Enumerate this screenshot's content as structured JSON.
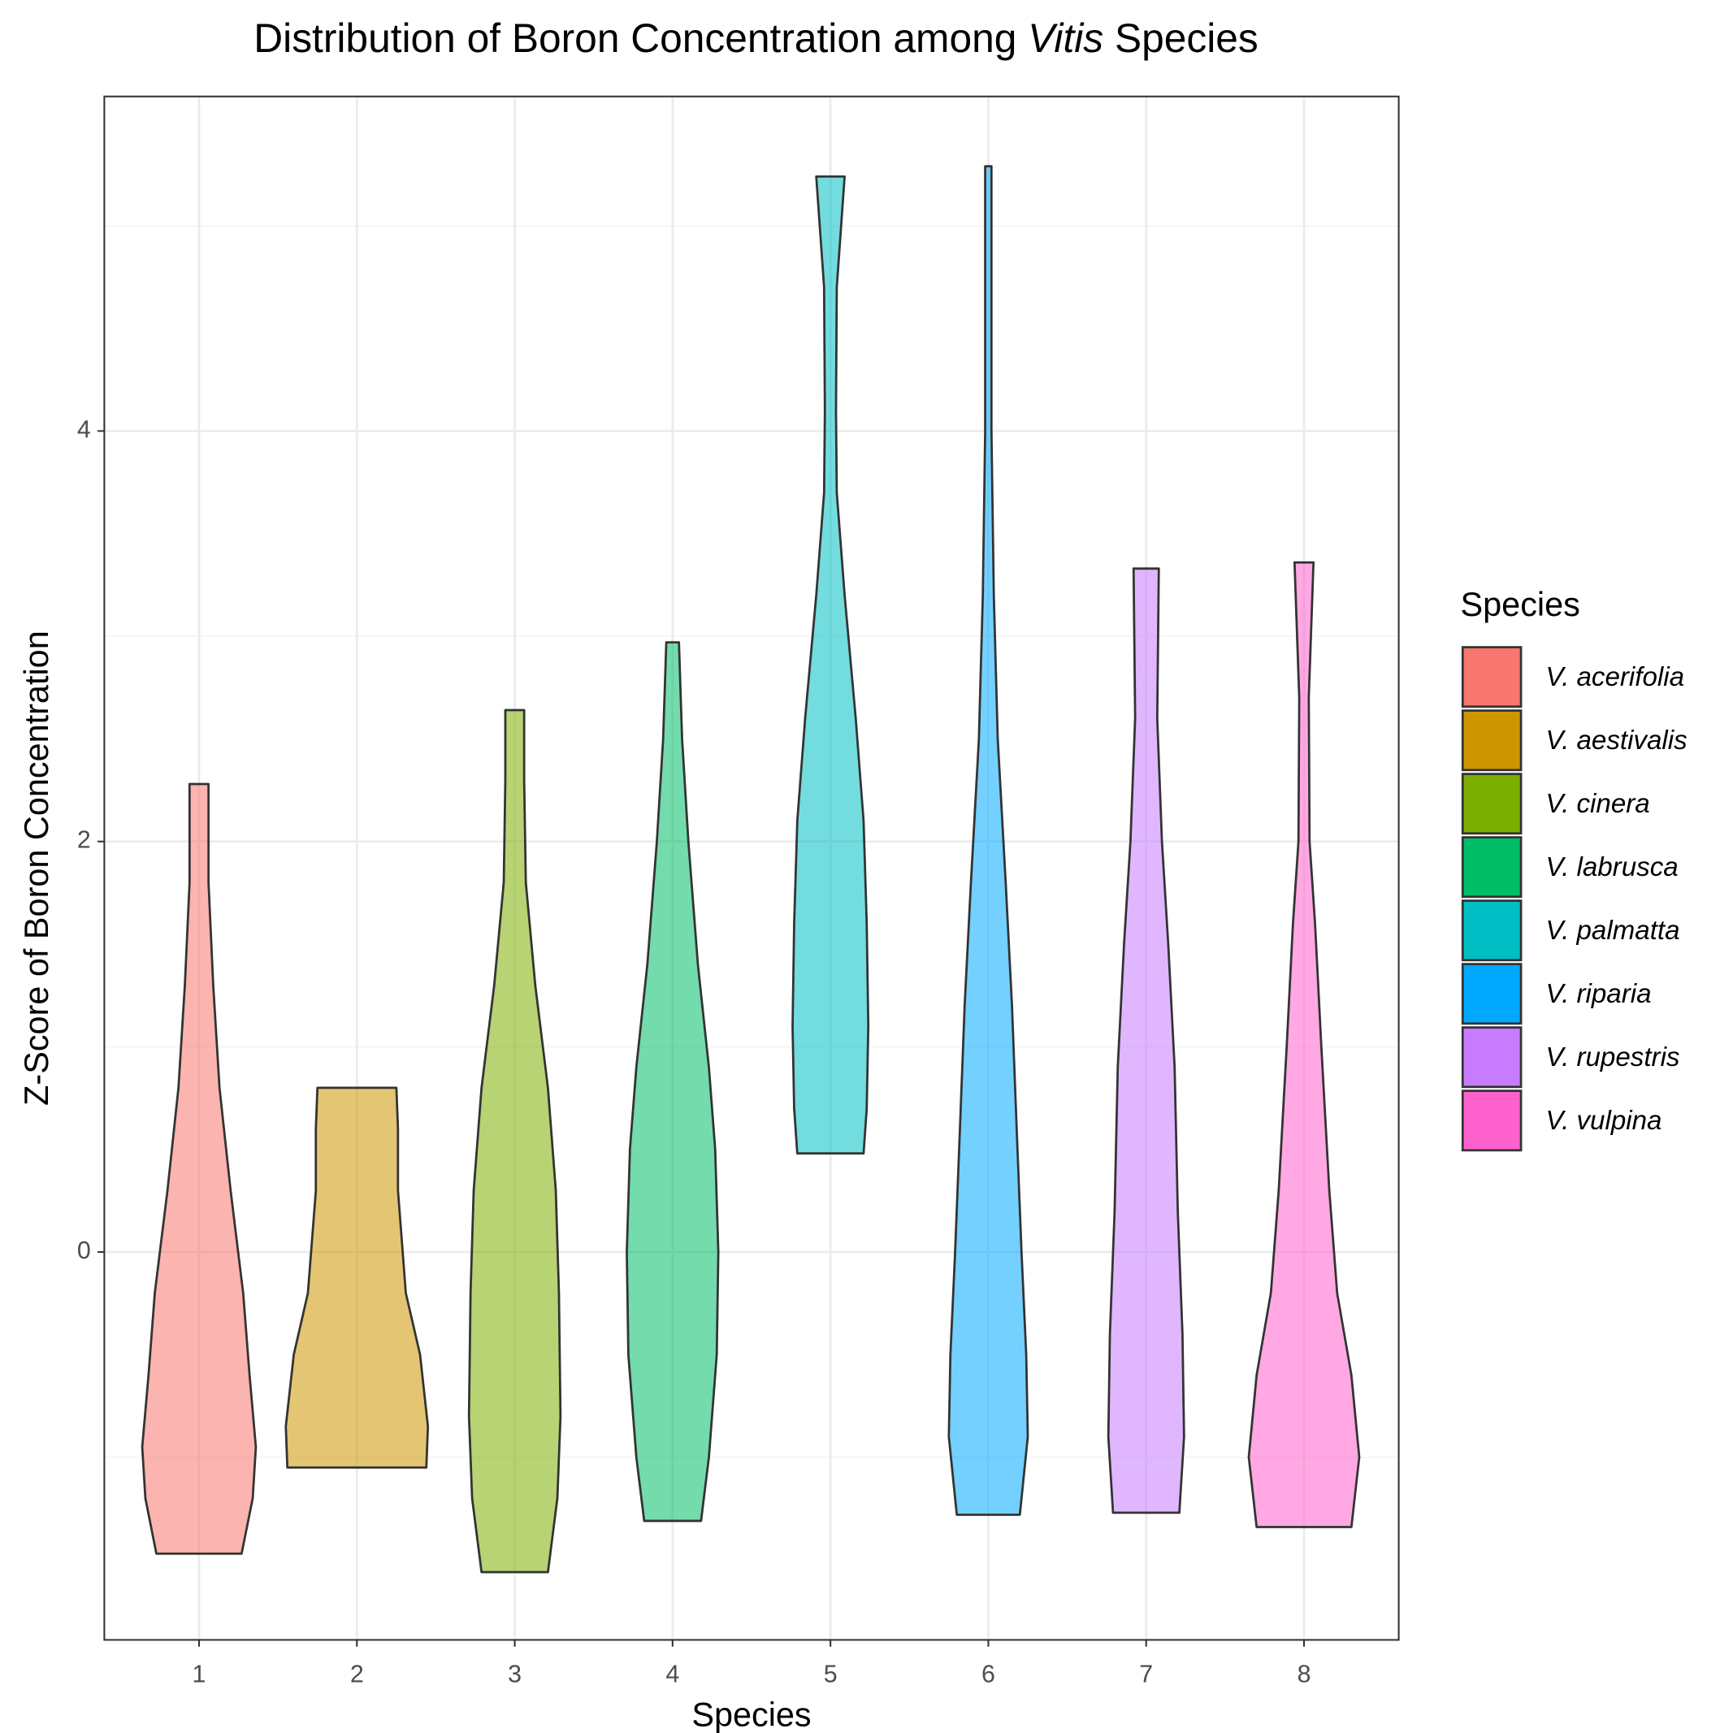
{
  "chart_data": {
    "type": "violin",
    "title": {
      "before": "Distribution of Boron Concentration among ",
      "italic": "Vitis",
      "after": " Species"
    },
    "x_label": "Species",
    "y_label": "Z-Score of Boron Concentration",
    "legend_title": "Species",
    "legend": "right",
    "grid": true,
    "categories": [
      "1",
      "2",
      "3",
      "4",
      "5",
      "6",
      "7",
      "8"
    ],
    "ylim": [
      -1.89,
      5.63
    ],
    "yticks": [
      0,
      2,
      4
    ],
    "yminor": [
      -1,
      1,
      3,
      5
    ],
    "opacity": 0.55,
    "series": [
      {
        "name": "V. acerifolia",
        "color": "#F8766D",
        "values": [
          -1.47,
          -1.2,
          -0.95,
          -0.6,
          -0.2,
          0.3,
          0.8,
          1.3,
          1.8,
          2.28
        ],
        "widths": [
          0.27,
          0.34,
          0.36,
          0.32,
          0.28,
          0.2,
          0.13,
          0.09,
          0.06,
          0.06
        ]
      },
      {
        "name": "V. aestivalis",
        "color": "#CD9600",
        "values": [
          -1.05,
          -0.85,
          -0.5,
          -0.2,
          0.3,
          0.6,
          0.8
        ],
        "widths": [
          0.44,
          0.45,
          0.4,
          0.31,
          0.26,
          0.26,
          0.25
        ]
      },
      {
        "name": "V. cinera",
        "color": "#7CAE00",
        "values": [
          -1.56,
          -1.2,
          -0.8,
          -0.2,
          0.3,
          0.8,
          1.3,
          1.8,
          2.3,
          2.64
        ],
        "widths": [
          0.21,
          0.27,
          0.29,
          0.28,
          0.26,
          0.21,
          0.13,
          0.07,
          0.06,
          0.06
        ]
      },
      {
        "name": "V. labrusca",
        "color": "#00BE67",
        "values": [
          -1.31,
          -1.0,
          -0.5,
          0,
          0.5,
          0.9,
          1.4,
          2.0,
          2.5,
          2.97
        ],
        "widths": [
          0.18,
          0.23,
          0.28,
          0.29,
          0.27,
          0.23,
          0.16,
          0.1,
          0.06,
          0.04
        ]
      },
      {
        "name": "V. palmatta",
        "color": "#00BFC4",
        "values": [
          0.48,
          0.7,
          1.1,
          1.6,
          2.1,
          2.6,
          3.2,
          3.7,
          4.1,
          4.7,
          5.24
        ],
        "widths": [
          0.21,
          0.23,
          0.24,
          0.23,
          0.21,
          0.16,
          0.09,
          0.04,
          0.035,
          0.04,
          0.09
        ]
      },
      {
        "name": "V. riparia",
        "color": "#00A9FF",
        "values": [
          -1.28,
          -0.9,
          -0.5,
          0,
          0.6,
          1.2,
          1.8,
          2.5,
          3.2,
          4.0,
          5.29
        ],
        "widths": [
          0.2,
          0.25,
          0.24,
          0.21,
          0.18,
          0.15,
          0.11,
          0.06,
          0.035,
          0.02,
          0.02
        ]
      },
      {
        "name": "V. rupestris",
        "color": "#C77CFF",
        "values": [
          -1.27,
          -0.9,
          -0.4,
          0.2,
          0.9,
          1.5,
          2.0,
          2.6,
          3.33
        ],
        "widths": [
          0.21,
          0.24,
          0.23,
          0.2,
          0.18,
          0.14,
          0.1,
          0.07,
          0.08
        ]
      },
      {
        "name": "V. vulpina",
        "color": "#FF61CC",
        "values": [
          -1.34,
          -1.0,
          -0.6,
          -0.2,
          0.3,
          1.0,
          1.6,
          2.0,
          2.7,
          3.36
        ],
        "widths": [
          0.3,
          0.35,
          0.3,
          0.21,
          0.16,
          0.11,
          0.07,
          0.035,
          0.03,
          0.06
        ]
      }
    ]
  }
}
